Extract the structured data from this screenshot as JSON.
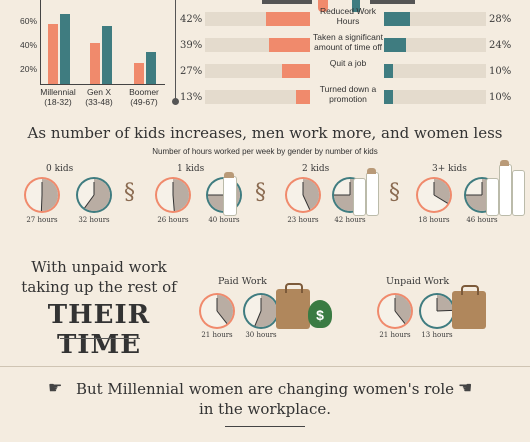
{
  "top_chart": {
    "yticks": [
      "60%",
      "40%",
      "20%"
    ],
    "groups": [
      {
        "label": "Millennial",
        "sub": "(18-32)",
        "values": [
          60,
          70
        ]
      },
      {
        "label": "Gen X",
        "sub": "(33-48)",
        "values": [
          41,
          58
        ]
      },
      {
        "label": "Boomer",
        "sub": "(49-67)",
        "values": [
          21,
          32
        ]
      }
    ],
    "colors": {
      "women": "#f08a6c",
      "men": "#3f7c80"
    }
  },
  "career_rows": [
    {
      "left": "42%",
      "label": "Reduced Work Hours",
      "right": "28%",
      "lv": 42,
      "rv": 28
    },
    {
      "left": "39%",
      "label": "Taken a significant amount of time off",
      "right": "24%",
      "lv": 39,
      "rv": 24
    },
    {
      "left": "27%",
      "label": "Quit a job",
      "right": "10%",
      "lv": 27,
      "rv": 10
    },
    {
      "left": "13%",
      "label": "Turned down a promotion",
      "right": "10%",
      "lv": 13,
      "rv": 10
    }
  ],
  "kids_section": {
    "title": "As number of kids increases, men work more, and women less",
    "subtitle": "Number of hours worked per week by gender by number of kids",
    "groups": [
      {
        "label": "0 kids",
        "women": "27 hours",
        "men": "32 hours"
      },
      {
        "label": "1 kids",
        "women": "26 hours",
        "men": "40 hours"
      },
      {
        "label": "2 kids",
        "women": "23 hours",
        "men": "42 hours"
      },
      {
        "label": "3+ kids",
        "women": "18 hours",
        "men": "46 hours"
      }
    ]
  },
  "unpaid_section": {
    "line1": "With unpaid work",
    "line2": "taking up the rest of",
    "line3": "THEIR TIME",
    "paid": {
      "label": "Paid Work",
      "women": "21 hours",
      "men": "30 hours"
    },
    "unpaid": {
      "label": "Unpaid Work",
      "women": "21 hours",
      "men": "13 hours"
    }
  },
  "footer": {
    "line1": "But Millennial women are changing women's role",
    "line2": "in the workplace."
  }
}
